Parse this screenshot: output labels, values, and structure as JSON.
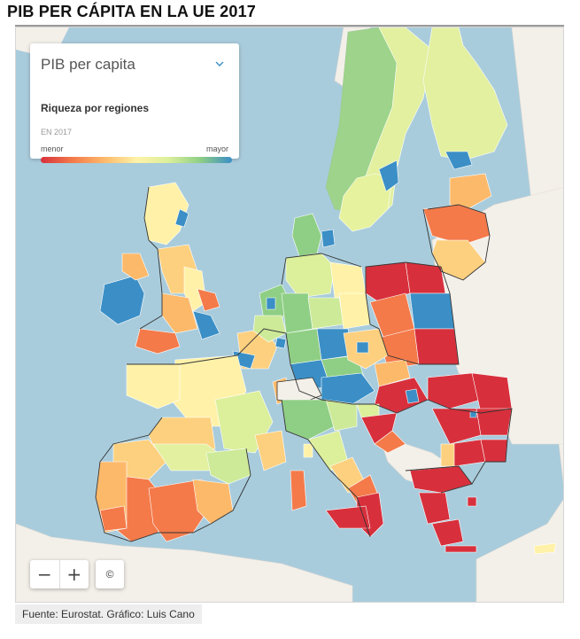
{
  "title": "PIB PER CÁPITA EN LA UE 2017",
  "legend": {
    "select_label": "PIB per capita",
    "subtitle": "Riqueza por regiones",
    "year": "EN 2017",
    "min_label": "menor",
    "max_label": "mayor",
    "scale_colors": [
      "#d7303c",
      "#f47a4a",
      "#fdb96a",
      "#fff2a8",
      "#dcef9b",
      "#8fcf85",
      "#3b8fc6"
    ],
    "select_icon": "chevron-down-icon"
  },
  "controls": {
    "zoom_out": "−",
    "zoom_in": "+",
    "attribution": "©"
  },
  "source": "Fuente: Eurostat. Gráfico: Luis Cano",
  "colors": {
    "sea": "#a9ccdc",
    "non_eu_land": "#f3efe9",
    "border": "#333333"
  }
}
